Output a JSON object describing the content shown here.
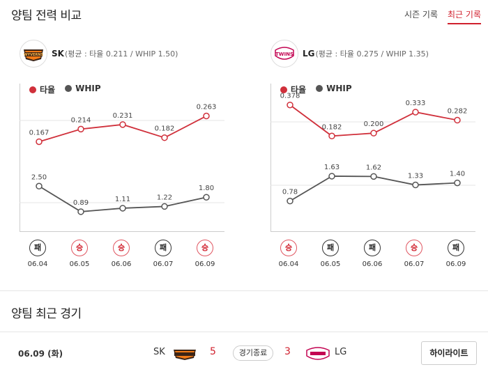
{
  "header": {
    "title": "양팀 전력 비교",
    "tabs": [
      "시즌 기록",
      "최근 기록"
    ],
    "active_tab": "최근 기록"
  },
  "teams": [
    {
      "name": "SK",
      "stat_text": "(평균 : 타율 0.211 / WHIP 1.50)",
      "logo_text": "WYVERNS"
    },
    {
      "name": "LG",
      "stat_text": "(평균 : 타율 0.275 / WHIP 1.35)",
      "logo_text": "TWINS"
    }
  ],
  "legend": {
    "avg_label": "타율",
    "whip_label": "WHIP"
  },
  "colors": {
    "avg": "#d0303b",
    "whip": "#555555",
    "accent": "#d0202d"
  },
  "chart_data": [
    {
      "type": "line",
      "team": "SK",
      "categories": [
        "06.04",
        "06.05",
        "06.06",
        "06.07",
        "06.09"
      ],
      "series": [
        {
          "name": "타율",
          "values": [
            0.167,
            0.214,
            0.231,
            0.182,
            0.263
          ],
          "labels": [
            "0.167",
            "0.214",
            "0.231",
            "0.182",
            "0.263"
          ]
        },
        {
          "name": "WHIP",
          "values": [
            2.5,
            0.89,
            1.11,
            1.22,
            1.8
          ],
          "labels": [
            "2.50",
            "0.89",
            "1.11",
            "1.22",
            "1.80"
          ]
        }
      ],
      "results": [
        "패",
        "승",
        "승",
        "패",
        "승"
      ]
    },
    {
      "type": "line",
      "team": "LG",
      "categories": [
        "06.04",
        "06.05",
        "06.06",
        "06.07",
        "06.09"
      ],
      "series": [
        {
          "name": "타율",
          "values": [
            0.378,
            0.182,
            0.2,
            0.333,
            0.282
          ],
          "labels": [
            "0.378",
            "0.182",
            "0.200",
            "0.333",
            "0.282"
          ]
        },
        {
          "name": "WHIP",
          "values": [
            0.78,
            1.63,
            1.62,
            1.33,
            1.4
          ],
          "labels": [
            "0.78",
            "1.63",
            "1.62",
            "1.33",
            "1.40"
          ]
        }
      ],
      "results": [
        "승",
        "패",
        "패",
        "승",
        "패"
      ]
    }
  ],
  "recent": {
    "title": "양팀 최근 경기",
    "games": [
      {
        "date": "06.09 (화)",
        "home": "SK",
        "home_score": "5",
        "status": "경기종료",
        "away_score": "3",
        "away": "LG",
        "highlight_label": "하이라이트"
      }
    ]
  }
}
